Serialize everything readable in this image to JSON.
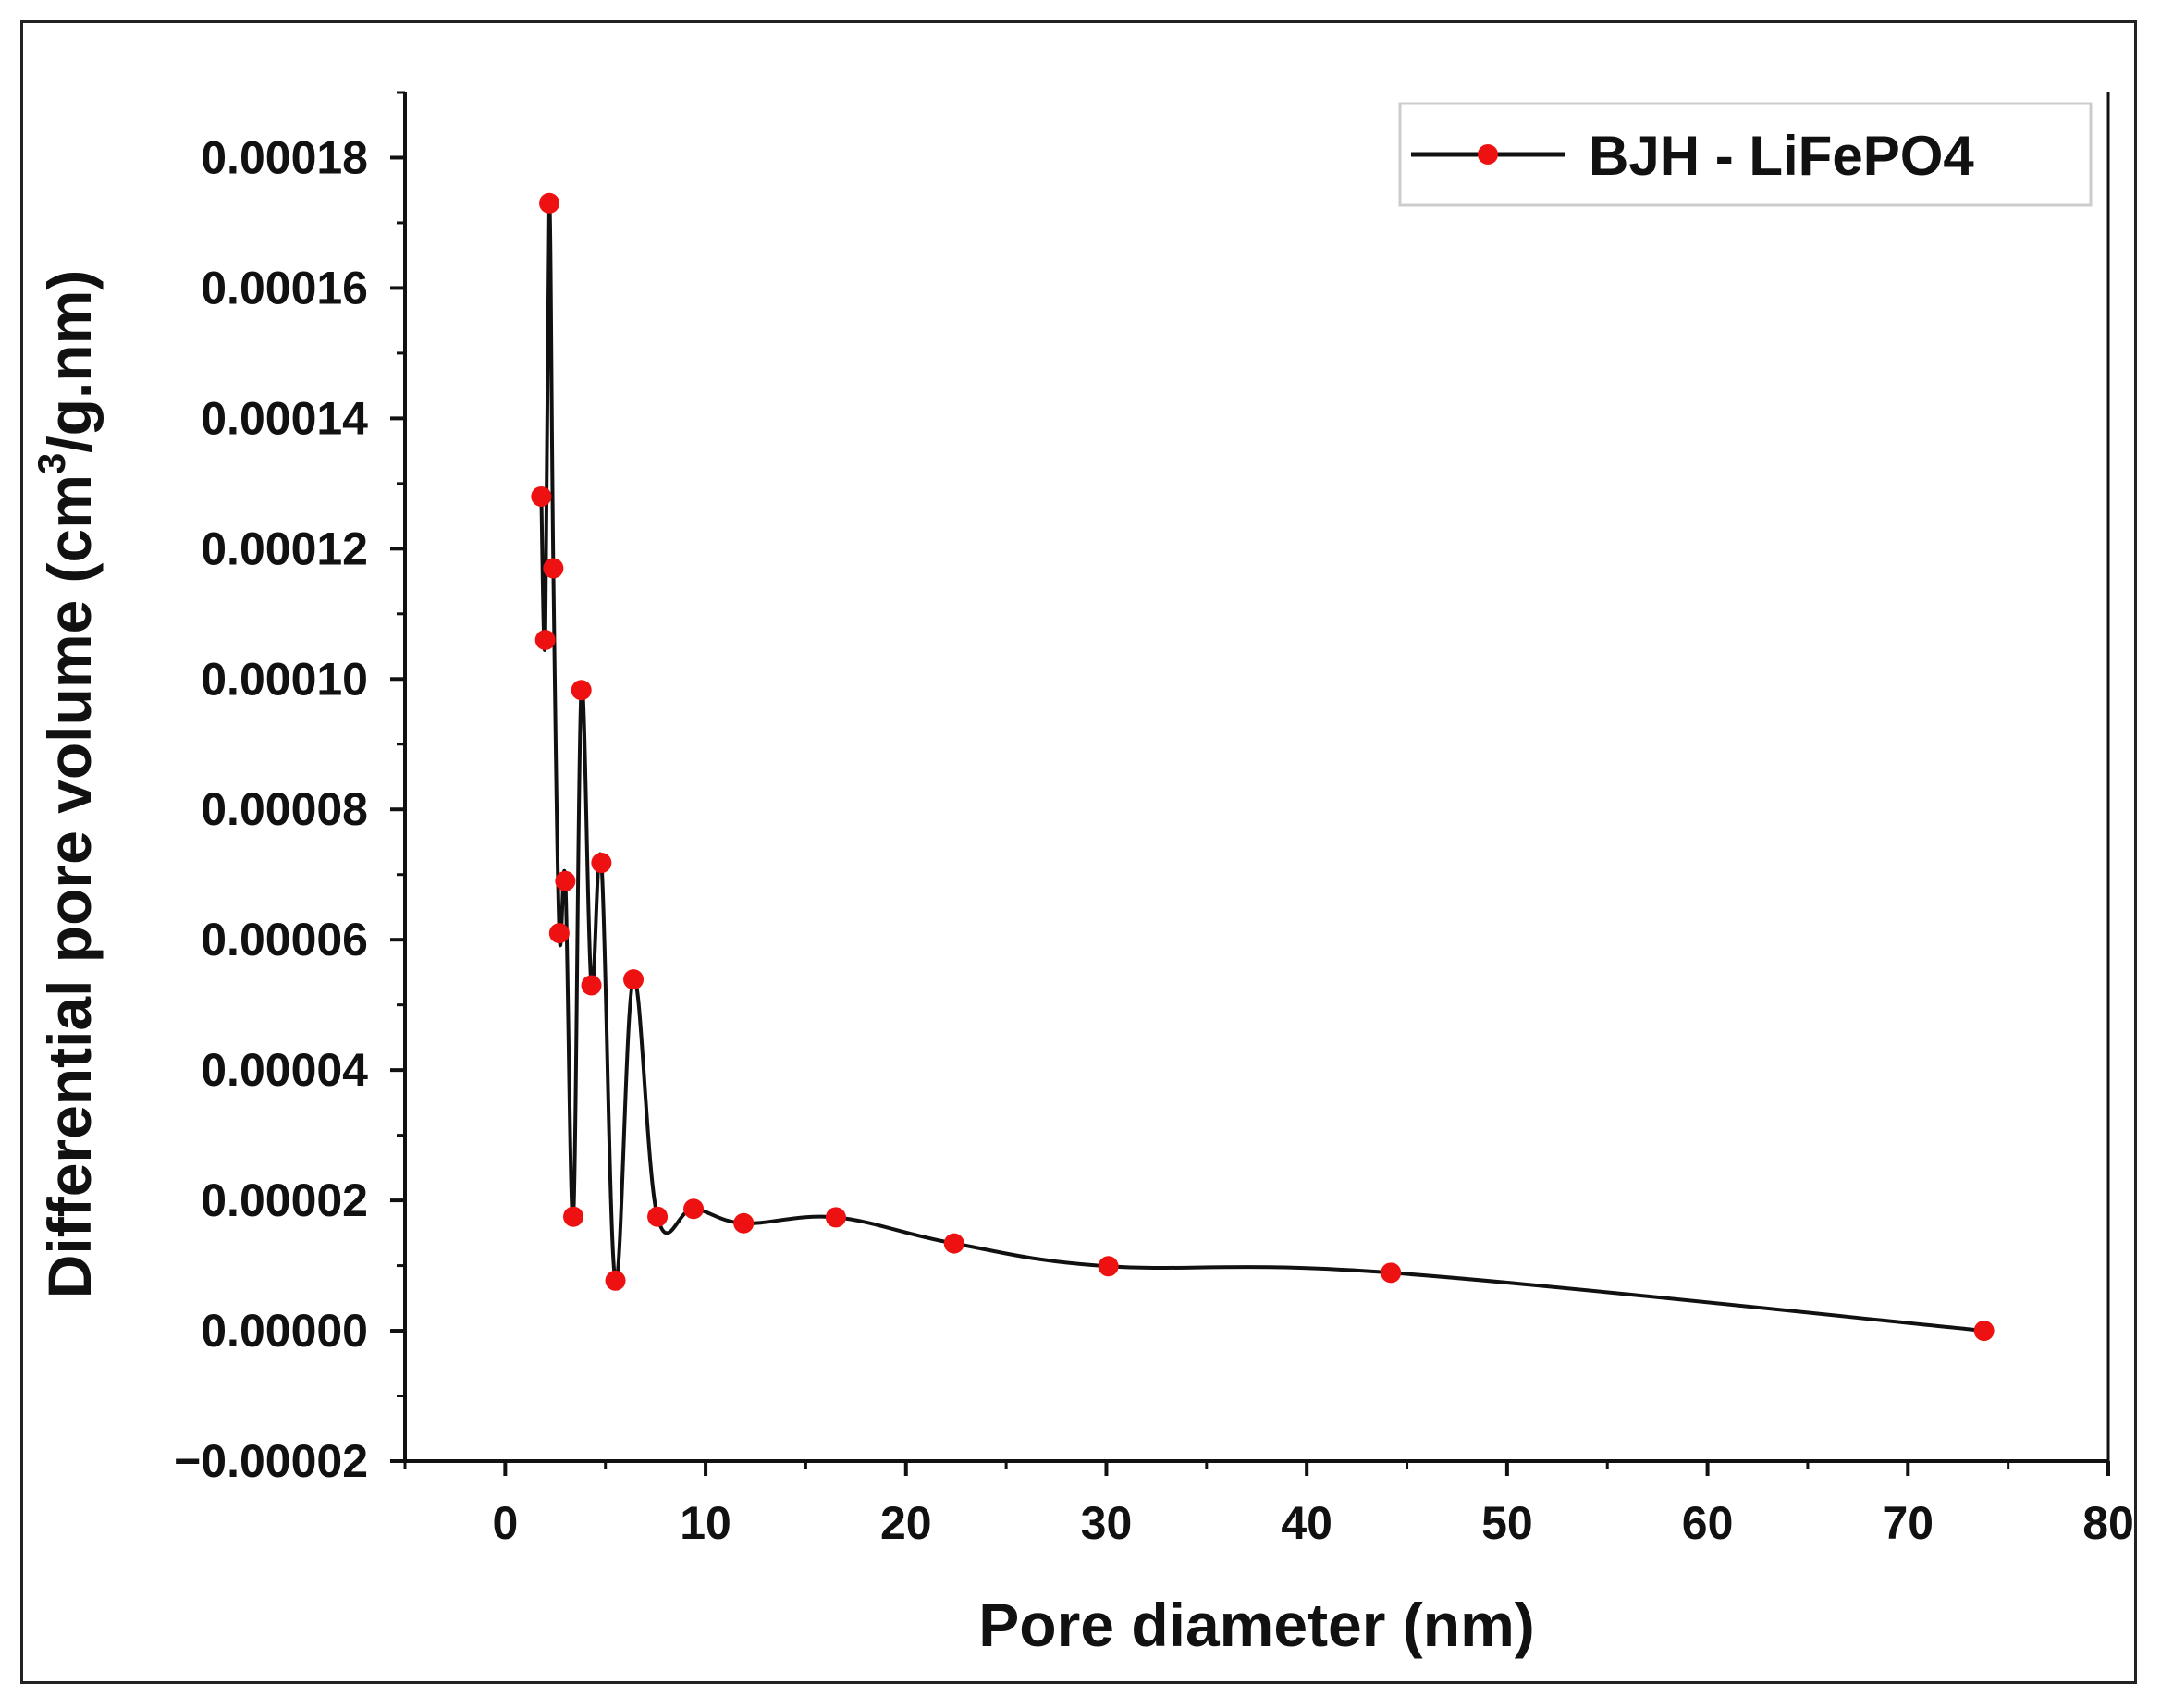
{
  "chart_data": {
    "type": "line",
    "title": "",
    "xlabel": "Pore diameter (nm)",
    "ylabel": {
      "prefix": "Differential pore volume (cm",
      "superscript": "3",
      "suffix": "/g.nm)"
    },
    "xlim": [
      -5,
      80
    ],
    "ylim": [
      -2e-05,
      0.00019
    ],
    "xticks": [
      0,
      10,
      20,
      30,
      40,
      50,
      60,
      70,
      80
    ],
    "xtick_labels": [
      "0",
      "10",
      "20",
      "30",
      "40",
      "50",
      "60",
      "70",
      "80"
    ],
    "yticks": [
      -2e-05,
      0.0,
      2e-05,
      4e-05,
      6e-05,
      8e-05,
      0.0001,
      0.00012,
      0.00014,
      0.00016,
      0.00018
    ],
    "ytick_labels": [
      "−0.00002",
      "0.00000",
      "0.00002",
      "0.00004",
      "0.00006",
      "0.00008",
      "0.00010",
      "0.00012",
      "0.00014",
      "0.00016",
      "0.00018"
    ],
    "grid": false,
    "legend_position": "top-right",
    "series": [
      {
        "name": "BJH - LiFePO4",
        "line_color": "#111111",
        "marker_color": "#ee1111",
        "x": [
          1.8,
          2.0,
          2.2,
          2.4,
          2.7,
          3.0,
          3.4,
          3.8,
          4.3,
          4.8,
          5.5,
          6.4,
          7.6,
          9.4,
          11.9,
          16.5,
          22.4,
          30.1,
          44.2,
          73.8
        ],
        "y": [
          0.000128,
          0.000106,
          0.000173,
          0.000117,
          6.1e-05,
          6.9e-05,
          1.75e-05,
          9.83e-05,
          5.3e-05,
          7.18e-05,
          7.7e-06,
          5.39e-05,
          1.75e-05,
          1.87e-05,
          1.65e-05,
          1.74e-05,
          1.34e-05,
          9.9e-06,
          8.9e-06,
          0.0
        ]
      }
    ]
  }
}
